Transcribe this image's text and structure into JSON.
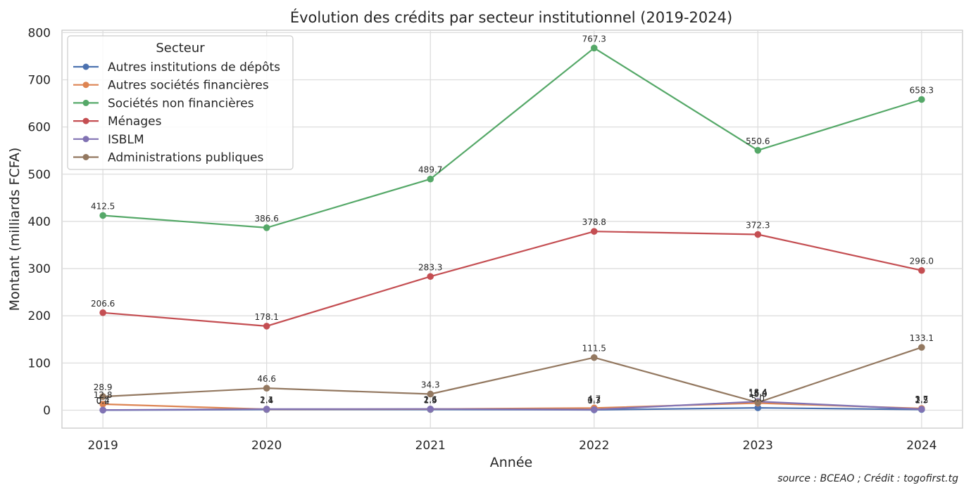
{
  "chart_data": {
    "type": "line",
    "title": "Évolution des crédits par secteur institutionnel (2019-2024)",
    "xlabel": "Année",
    "ylabel": "Montant (milliards FCFA)",
    "x": [
      2019,
      2020,
      2021,
      2022,
      2023,
      2024
    ],
    "x_tick_labels": [
      "2019",
      "2020",
      "2021",
      "2022",
      "2023",
      "2024"
    ],
    "ylim": [
      -38,
      805
    ],
    "y_ticks": [
      0,
      100,
      200,
      300,
      400,
      500,
      600,
      700,
      800
    ],
    "grid": true,
    "legend": {
      "title": "Secteur",
      "placement": "top-left"
    },
    "series": [
      {
        "name": "Autres institutions de dépôts",
        "color": "#4c72b0",
        "values": [
          0.2,
          1.4,
          1.5,
          0.7,
          5.0,
          1.5
        ],
        "labels": [
          "0.2",
          "1.4",
          "1.5",
          "0.7",
          "5.0",
          "1.5"
        ]
      },
      {
        "name": "Autres sociétés financières",
        "color": "#dd8452",
        "values": [
          12.8,
          2.1,
          2.4,
          4.7,
          15.0,
          3.7
        ],
        "labels": [
          "12.8",
          "2.1",
          "2.4",
          "4.7",
          "15.0",
          "3.7"
        ]
      },
      {
        "name": "Sociétés non financières",
        "color": "#55a868",
        "values": [
          412.5,
          386.6,
          489.7,
          767.3,
          550.6,
          658.3
        ],
        "labels": [
          "412.5",
          "386.6",
          "489.7",
          "767.3",
          "550.6",
          "658.3"
        ]
      },
      {
        "name": "Ménages",
        "color": "#c44e52",
        "values": [
          206.6,
          178.1,
          283.3,
          378.8,
          372.3,
          296.0
        ],
        "labels": [
          "206.6",
          "178.1",
          "283.3",
          "378.8",
          "372.3",
          "296.0"
        ]
      },
      {
        "name": "ISBLM",
        "color": "#8172b3",
        "values": [
          0.4,
          2.4,
          2.6,
          1.3,
          18.4,
          2.2
        ],
        "labels": [
          "0.4",
          "2.4",
          "2.6",
          "1.3",
          "18.4",
          "2.2"
        ]
      },
      {
        "name": "Administrations publiques",
        "color": "#937860",
        "values": [
          28.9,
          46.6,
          34.3,
          111.5,
          16.4,
          133.1
        ],
        "labels": [
          "28.9",
          "46.6",
          "34.3",
          "111.5",
          "16.4",
          "133.1"
        ]
      }
    ]
  },
  "source": "source : BCEAO ; Crédit : togofirst.tg"
}
